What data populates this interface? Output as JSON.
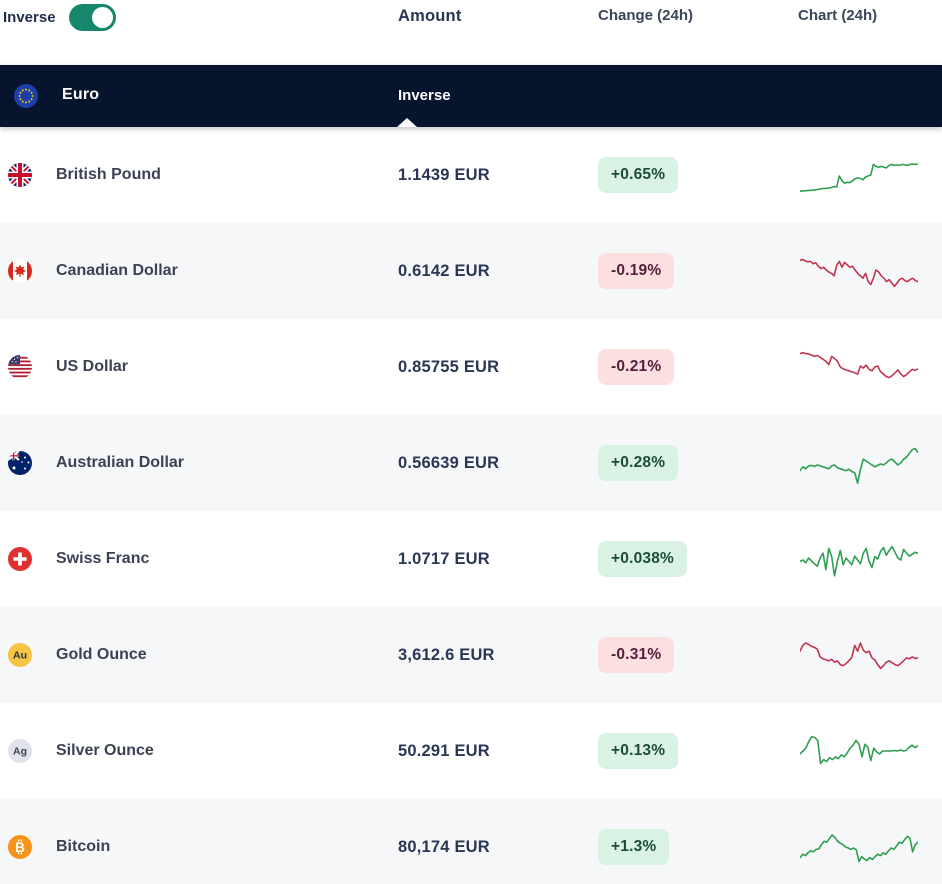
{
  "controls": {
    "inverse_label": "Inverse",
    "toggle_on": true
  },
  "columns": {
    "amount": "Amount",
    "change": "Change (24h)",
    "chart": "Chart (24h)"
  },
  "base": {
    "name": "Euro",
    "mode_label": "Inverse",
    "icon": "eu"
  },
  "colors": {
    "up_line": "#2f9e52",
    "down_line": "#c2354f",
    "up_badge_bg": "#d9f2e4",
    "up_badge_text": "#1d4e3a",
    "down_badge_bg": "#fcdfdf",
    "down_badge_text": "#54203c",
    "base_bar_bg": "#06142e",
    "toggle_on": "#17876b",
    "row_alt_bg": "#f6f7f9"
  },
  "table": {
    "rows": [
      {
        "name": "British Pound",
        "icon": "gb",
        "amount": "1.1439 EUR",
        "change": "+0.65%",
        "direction": "up",
        "spark": [
          16,
          17,
          17,
          18,
          18,
          19,
          19,
          20,
          21,
          22,
          22,
          23,
          24,
          26,
          25,
          48,
          38,
          33,
          35,
          34,
          38,
          42,
          44,
          43,
          40,
          46,
          48,
          50,
          72,
          68,
          66,
          68,
          66,
          65,
          70,
          72,
          70,
          71,
          70,
          72,
          71,
          70,
          72,
          73,
          72,
          73
        ]
      },
      {
        "name": "Canadian Dollar",
        "icon": "ca",
        "amount": "0.6142 EUR",
        "change": "-0.19%",
        "direction": "down",
        "spark": [
          72,
          74,
          71,
          69,
          70,
          65,
          67,
          60,
          55,
          58,
          52,
          48,
          45,
          40,
          62,
          70,
          58,
          68,
          63,
          58,
          60,
          52,
          45,
          40,
          35,
          45,
          28,
          22,
          35,
          52,
          48,
          40,
          35,
          28,
          32,
          25,
          18,
          25,
          32,
          35,
          30,
          28,
          32,
          35,
          30,
          28
        ]
      },
      {
        "name": "US Dollar",
        "icon": "us",
        "amount": "0.85755 EUR",
        "change": "-0.21%",
        "direction": "down",
        "spark": [
          78,
          80,
          78,
          77,
          75,
          72,
          74,
          70,
          66,
          62,
          55,
          72,
          68,
          62,
          50,
          46,
          44,
          42,
          40,
          38,
          35,
          52,
          48,
          54,
          45,
          42,
          50,
          52,
          40,
          35,
          30,
          28,
          32,
          38,
          44,
          36,
          30,
          34,
          40,
          45,
          43,
          46
        ]
      },
      {
        "name": "Australian Dollar",
        "icon": "au",
        "amount": "0.56639 EUR",
        "change": "+0.28%",
        "direction": "up",
        "spark": [
          34,
          42,
          38,
          44,
          45,
          43,
          46,
          44,
          42,
          40,
          38,
          44,
          46,
          40,
          38,
          36,
          34,
          37,
          32,
          30,
          8,
          36,
          58,
          54,
          50,
          46,
          42,
          45,
          48,
          46,
          50,
          56,
          58,
          52,
          46,
          50,
          58,
          62,
          70,
          78,
          80,
          72
        ]
      },
      {
        "name": "Swiss Franc",
        "icon": "ch",
        "amount": "1.0717 EUR",
        "change": "+0.038%",
        "direction": "up",
        "spark": [
          45,
          48,
          42,
          52,
          46,
          40,
          35,
          52,
          62,
          28,
          72,
          55,
          15,
          45,
          68,
          38,
          52,
          45,
          38,
          56,
          48,
          40,
          62,
          72,
          45,
          32,
          55,
          50,
          66,
          74,
          58,
          68,
          76,
          64,
          52,
          48,
          70,
          62,
          56,
          60,
          64,
          62
        ]
      },
      {
        "name": "Gold Ounce",
        "icon": "gold",
        "amount": "3,612.6 EUR",
        "change": "-0.31%",
        "direction": "down",
        "spark": [
          58,
          70,
          75,
          72,
          68,
          66,
          62,
          46,
          42,
          40,
          38,
          41,
          35,
          38,
          30,
          28,
          32,
          38,
          45,
          70,
          58,
          75,
          60,
          55,
          58,
          44,
          40,
          30,
          22,
          28,
          35,
          38,
          34,
          30,
          28,
          32,
          38,
          44,
          42,
          46,
          43,
          44
        ]
      },
      {
        "name": "Silver Ounce",
        "icon": "silver",
        "amount": "50.291 EUR",
        "change": "+0.13%",
        "direction": "up",
        "spark": [
          44,
          50,
          56,
          70,
          80,
          78,
          72,
          24,
          32,
          28,
          36,
          32,
          38,
          34,
          42,
          38,
          46,
          56,
          62,
          72,
          64,
          38,
          64,
          58,
          30,
          56,
          48,
          44,
          50,
          50,
          50,
          50,
          51,
          50,
          52,
          50,
          51,
          58,
          62,
          57,
          61
        ]
      },
      {
        "name": "Bitcoin",
        "icon": "btc",
        "amount": "80,174 EUR",
        "change": "+1.3%",
        "direction": "up",
        "spark": [
          28,
          35,
          32,
          38,
          42,
          40,
          45,
          46,
          55,
          62,
          60,
          68,
          75,
          70,
          62,
          58,
          55,
          50,
          48,
          45,
          48,
          44,
          20,
          30,
          25,
          22,
          28,
          24,
          30,
          35,
          32,
          38,
          35,
          42,
          48,
          45,
          52,
          60,
          58,
          65,
          72,
          68,
          40,
          55,
          60
        ]
      }
    ]
  }
}
